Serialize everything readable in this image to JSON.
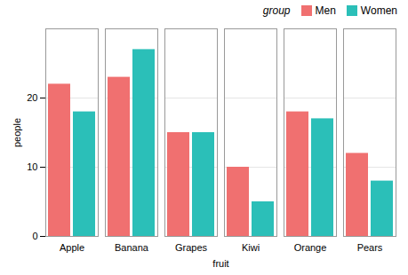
{
  "chart_data": {
    "type": "bar",
    "categories": [
      "Apple",
      "Banana",
      "Grapes",
      "Kiwi",
      "Orange",
      "Pears"
    ],
    "series": [
      {
        "name": "Men",
        "color": "#F07070",
        "values": [
          22,
          23,
          15,
          10,
          18,
          12
        ]
      },
      {
        "name": "Women",
        "color": "#2BBFB8",
        "values": [
          18,
          27,
          15,
          5,
          17,
          8
        ]
      }
    ],
    "xlabel": "fruit",
    "ylabel": "people",
    "ylim": [
      0,
      30
    ],
    "yticks": [
      0,
      10,
      20
    ],
    "grid": true,
    "legend": "upper right",
    "legend_title": "group"
  }
}
